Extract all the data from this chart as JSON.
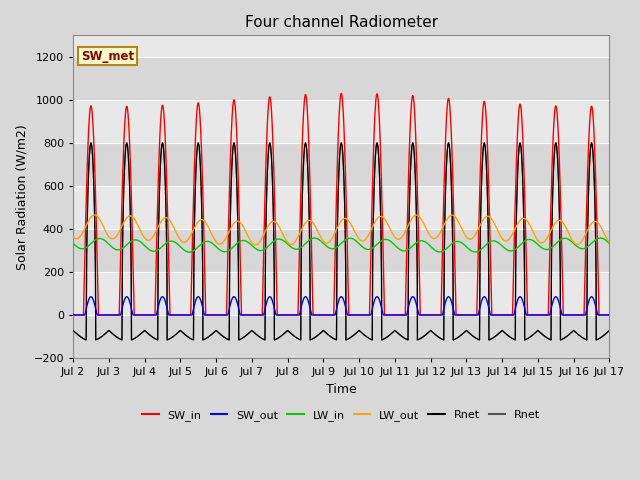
{
  "title": "Four channel Radiometer",
  "xlabel": "Time",
  "ylabel": "Solar Radiation (W/m2)",
  "annotation": "SW_met",
  "ylim": [
    -200,
    1300
  ],
  "xlim": [
    2,
    17
  ],
  "xtick_labels": [
    "Jul 2",
    "Jul 3",
    "Jul 4",
    "Jul 5",
    "Jul 6",
    "Jul 7",
    "Jul 8",
    "Jul 9",
    "Jul 10",
    "Jul 11",
    "Jul 12",
    "Jul 13",
    "Jul 14",
    "Jul 15",
    "Jul 16",
    "Jul 17"
  ],
  "xtick_positions": [
    2,
    3,
    4,
    5,
    6,
    7,
    8,
    9,
    10,
    11,
    12,
    13,
    14,
    15,
    16,
    17
  ],
  "ytick_positions": [
    -200,
    0,
    200,
    400,
    600,
    800,
    1000,
    1200
  ],
  "fig_bg_color": "#d8d8d8",
  "plot_bg_color": "#e8e8e8",
  "grid_color": "#ffffff",
  "series": [
    {
      "name": "SW_in",
      "color": "#ff0000"
    },
    {
      "name": "SW_out",
      "color": "#0000ff"
    },
    {
      "name": "LW_in",
      "color": "#00cc00"
    },
    {
      "name": "LW_out",
      "color": "#ffa500"
    },
    {
      "name": "Rnet",
      "color": "#000000"
    },
    {
      "name": "Rnet",
      "color": "#555555"
    }
  ],
  "points_per_day": 300,
  "num_days": 15,
  "day_start": 2,
  "SW_in_peak": 1000,
  "SW_out_peak": 85,
  "LW_in_base": 325,
  "LW_in_amp": 25,
  "LW_out_base": 395,
  "LW_out_amp": 55,
  "Rnet_peak": 800,
  "Rnet_min": -120
}
